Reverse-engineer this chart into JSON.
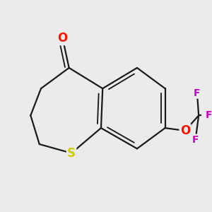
{
  "bg_color": "#ebebeb",
  "bond_color": "#1a1a1a",
  "bond_width": 1.6,
  "figsize": [
    3.0,
    3.0
  ],
  "dpi": 100,
  "xlim": [
    -2.5,
    2.8
  ],
  "ylim": [
    -2.2,
    2.2
  ],
  "S_color": "#cccc00",
  "O_color": "#ff1100",
  "F_color": "#cc00cc",
  "S_fontsize": 12,
  "O_fontsize": 12,
  "F_fontsize": 10
}
